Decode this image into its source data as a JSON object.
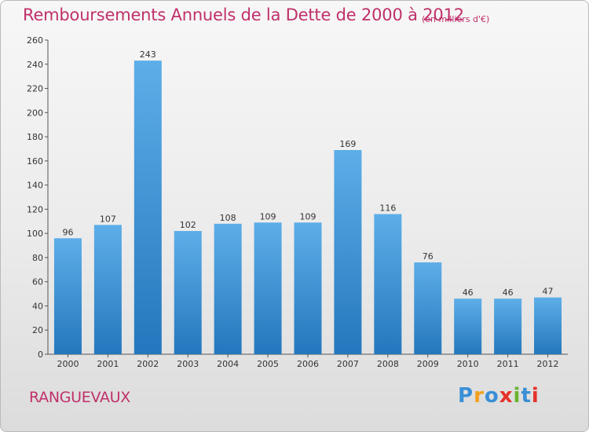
{
  "header": {
    "title": "Remboursements Annuels de la Dette de 2000 à 2012",
    "subtitle": "(en milliers d'€)"
  },
  "footer": {
    "commune": "RANGUEVAUX",
    "logo": "Proxiti"
  },
  "colors": {
    "title": "#c0306a",
    "bar_light": "#5daee8",
    "bar_dark": "#2477bd",
    "logo_letters": [
      "#3a8fd6",
      "#f2a01d",
      "#3a8fd6",
      "#e6332a",
      "#6ab42d",
      "#3a8fd6",
      "#e6332a"
    ]
  },
  "chart_data": {
    "type": "bar",
    "categories": [
      "2000",
      "2001",
      "2002",
      "2003",
      "2004",
      "2005",
      "2006",
      "2007",
      "2008",
      "2009",
      "2010",
      "2011",
      "2012"
    ],
    "values": [
      96,
      107,
      243,
      102,
      108,
      109,
      109,
      169,
      116,
      76,
      46,
      46,
      47
    ],
    "title": "Remboursements Annuels de la Dette de 2000 à 2012",
    "ylim": [
      0,
      260
    ],
    "yticks": [
      0,
      20,
      40,
      60,
      80,
      100,
      120,
      140,
      160,
      180,
      200,
      220,
      240,
      260
    ],
    "grid": false,
    "data_labels": true
  }
}
